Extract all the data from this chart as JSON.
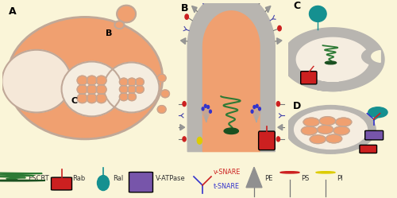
{
  "bg_color": "#faf5d8",
  "cell_color": "#f0a070",
  "cell_border_color": "#c0a898",
  "membrane_color": "#b8b5b0",
  "nucleus_color": "#f5e8d8",
  "mvb_fill": "#f5ede0",
  "small_vesicle_color": "#f0a070",
  "escrt_dark": "#1a5020",
  "escrt_light": "#2d7a35",
  "rab_color": "#cc2020",
  "ral_color": "#159090",
  "vatp_color": "#7755aa",
  "vsnare_color": "#cc2020",
  "tsnare_color": "#3333cc",
  "pe_color": "#aaaaaa",
  "ps_color": "#cc2020",
  "pi_color": "#ddcc00",
  "legend_text_color": "#333333",
  "panel_a_label": "A",
  "panel_b_label": "B",
  "panel_c_label": "C",
  "panel_d_label": "D"
}
